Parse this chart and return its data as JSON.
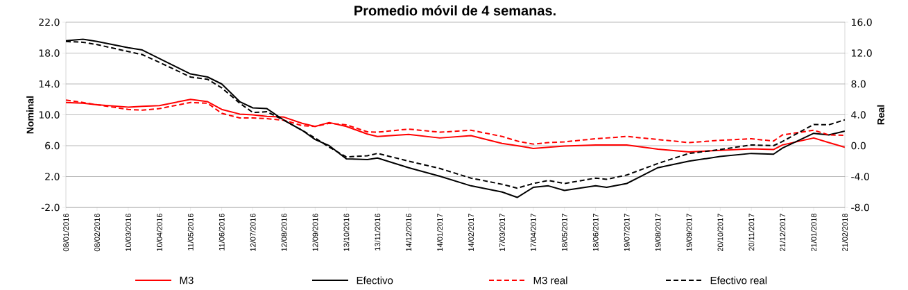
{
  "chart_data": {
    "type": "line",
    "title": "Promedio móvil de 4 semanas.",
    "ylabel": "Nominal",
    "y2label": "Real",
    "x": [
      "2016-01-08",
      "2016-01-25",
      "2016-02-08",
      "2016-03-10",
      "2016-03-24",
      "2016-04-10",
      "2016-05-11",
      "2016-05-28",
      "2016-06-11",
      "2016-06-29",
      "2016-07-12",
      "2016-07-26",
      "2016-08-12",
      "2016-08-30",
      "2016-09-12",
      "2016-09-26",
      "2016-10-13",
      "2016-11-03",
      "2016-11-13",
      "2016-12-14",
      "2017-01-14",
      "2017-02-14",
      "2017-03-17",
      "2017-04-01",
      "2017-04-17",
      "2017-05-02",
      "2017-05-18",
      "2017-06-18",
      "2017-06-29",
      "2017-07-19",
      "2017-08-19",
      "2017-09-19",
      "2017-10-20",
      "2017-11-20",
      "2017-12-12",
      "2017-12-21",
      "2018-01-21",
      "2018-02-05",
      "2018-02-21"
    ],
    "series": [
      {
        "name": "M3",
        "color": "#ff0000",
        "line_style": "solid",
        "values": [
          11.6,
          11.5,
          11.3,
          11.0,
          11.1,
          11.2,
          12.0,
          11.7,
          10.7,
          10.1,
          10.0,
          9.8,
          9.7,
          8.9,
          8.5,
          9.0,
          8.5,
          7.5,
          7.2,
          7.45,
          7.0,
          7.3,
          6.3,
          6.0,
          5.65,
          5.8,
          5.95,
          6.1,
          6.1,
          6.1,
          5.55,
          5.2,
          5.4,
          5.6,
          5.5,
          6.1,
          7.0,
          6.4,
          5.8
        ]
      },
      {
        "name": "Efectivo",
        "color": "#000000",
        "line_style": "solid",
        "values": [
          19.6,
          19.8,
          19.5,
          18.7,
          18.4,
          17.3,
          15.3,
          14.9,
          14.0,
          11.7,
          10.9,
          10.8,
          9.3,
          8.0,
          6.8,
          6.0,
          4.3,
          4.2,
          4.4,
          3.15,
          2.05,
          0.8,
          0.0,
          -0.7,
          0.6,
          0.8,
          0.2,
          0.8,
          0.6,
          1.1,
          3.15,
          4.0,
          4.6,
          5.0,
          4.9,
          5.7,
          7.6,
          7.4,
          7.9
        ]
      },
      {
        "name": "M3 real",
        "color": "#ff0000",
        "line_style": "dashed",
        "axis": "y2",
        "values": [
          5.9,
          5.6,
          5.3,
          4.7,
          4.6,
          4.8,
          5.6,
          5.5,
          4.2,
          3.6,
          3.6,
          3.5,
          3.3,
          2.6,
          2.5,
          2.9,
          2.7,
          1.8,
          1.75,
          2.15,
          1.75,
          2.0,
          1.2,
          0.6,
          0.2,
          0.4,
          0.5,
          0.9,
          1.0,
          1.2,
          0.8,
          0.4,
          0.7,
          0.9,
          0.6,
          1.4,
          2.0,
          1.4,
          1.35
        ]
      },
      {
        "name": "Efectivo real",
        "color": "#000000",
        "line_style": "dashed",
        "axis": "y2",
        "values": [
          13.5,
          13.4,
          13.1,
          12.2,
          11.8,
          10.8,
          8.9,
          8.6,
          7.5,
          5.5,
          4.3,
          4.4,
          3.3,
          2.0,
          1.0,
          -0.2,
          -1.45,
          -1.3,
          -1.0,
          -2.0,
          -2.95,
          -4.2,
          -5.0,
          -5.5,
          -4.9,
          -4.5,
          -4.9,
          -4.2,
          -4.35,
          -3.8,
          -2.3,
          -1.0,
          -0.5,
          0.1,
          0.0,
          0.55,
          2.75,
          2.7,
          3.35
        ]
      }
    ],
    "xlim": [
      "2016-01-08",
      "2018-02-21"
    ],
    "xticks": [
      {
        "value": "2016-01-08",
        "label": "08/01/2016"
      },
      {
        "value": "2016-02-08",
        "label": "08/02/2016"
      },
      {
        "value": "2016-03-10",
        "label": "10/03/2016"
      },
      {
        "value": "2016-04-10",
        "label": "10/04/2016"
      },
      {
        "value": "2016-05-11",
        "label": "11/05/2016"
      },
      {
        "value": "2016-06-11",
        "label": "11/06/2016"
      },
      {
        "value": "2016-07-12",
        "label": "12/07/2016"
      },
      {
        "value": "2016-08-12",
        "label": "12/08/2016"
      },
      {
        "value": "2016-09-12",
        "label": "12/09/2016"
      },
      {
        "value": "2016-10-13",
        "label": "13/10/2016"
      },
      {
        "value": "2016-11-13",
        "label": "13/11/2016"
      },
      {
        "value": "2016-12-14",
        "label": "14/12/2016"
      },
      {
        "value": "2017-01-14",
        "label": "14/01/2017"
      },
      {
        "value": "2017-02-14",
        "label": "14/02/2017"
      },
      {
        "value": "2017-03-17",
        "label": "17/03/2017"
      },
      {
        "value": "2017-04-17",
        "label": "17/04/2017"
      },
      {
        "value": "2017-05-18",
        "label": "18/05/2017"
      },
      {
        "value": "2017-06-18",
        "label": "18/06/2017"
      },
      {
        "value": "2017-07-19",
        "label": "19/07/2017"
      },
      {
        "value": "2017-08-19",
        "label": "19/08/2017"
      },
      {
        "value": "2017-09-19",
        "label": "19/09/2017"
      },
      {
        "value": "2017-10-20",
        "label": "20/10/2017"
      },
      {
        "value": "2017-11-20",
        "label": "20/11/2017"
      },
      {
        "value": "2017-12-21",
        "label": "21/12/2017"
      },
      {
        "value": "2018-01-21",
        "label": "21/01/2018"
      },
      {
        "value": "2018-02-21",
        "label": "21/02/2018"
      }
    ],
    "ylim": [
      -2,
      22
    ],
    "yticks": [
      {
        "value": -2,
        "label": "-2.0"
      },
      {
        "value": 2,
        "label": "2.0"
      },
      {
        "value": 6,
        "label": "6.0"
      },
      {
        "value": 10,
        "label": "10.0"
      },
      {
        "value": 14,
        "label": "14.0"
      },
      {
        "value": 18,
        "label": "18.0"
      },
      {
        "value": 22,
        "label": "22.0"
      }
    ],
    "y2lim": [
      -8,
      16
    ],
    "y2ticks": [
      {
        "value": -8,
        "label": "-8.0"
      },
      {
        "value": -4,
        "label": "-4.0"
      },
      {
        "value": 0,
        "label": "0.0"
      },
      {
        "value": 4,
        "label": "4.0"
      },
      {
        "value": 8,
        "label": "8.0"
      },
      {
        "value": 12,
        "label": "12.0"
      },
      {
        "value": 16,
        "label": "16.0"
      }
    ],
    "grid": "y",
    "legend": "bottom"
  }
}
